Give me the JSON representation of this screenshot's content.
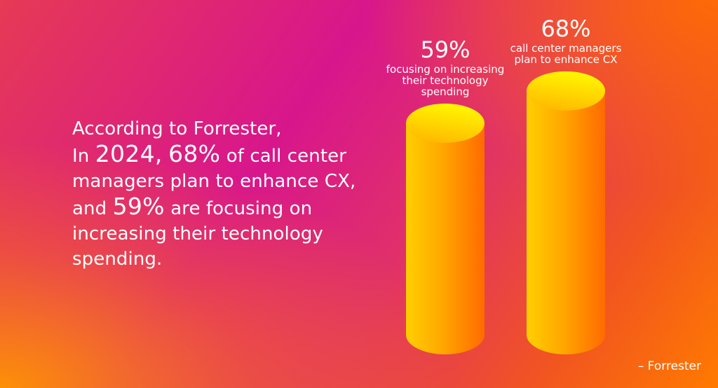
{
  "quote": {
    "line1": "According to Forrester,",
    "line2_pre": "In ",
    "line2_year": "2024,",
    "line2_pct": "68%",
    "line2_post": " of call center",
    "line3": "managers plan to enhance CX,",
    "line4_pre": "and ",
    "line4_pct": "59%",
    "line4_post": " are focusing on",
    "line5": "increasing their technology",
    "line6": "spending."
  },
  "source": "– Forrester",
  "colors": {
    "cylinder_light": "#ffcf00",
    "cylinder_dark": "#ff6a00",
    "top_light": "#fff200",
    "top_dark": "#ffb300"
  },
  "chart_data": {
    "type": "bar",
    "style": "3d-cylinder",
    "values": [
      59,
      68
    ],
    "value_labels": [
      "59%",
      "68%"
    ],
    "descriptions": [
      [
        "focusing on increasing",
        "their technology",
        "spending"
      ],
      [
        "call center managers",
        "plan to enhance CX"
      ]
    ]
  }
}
